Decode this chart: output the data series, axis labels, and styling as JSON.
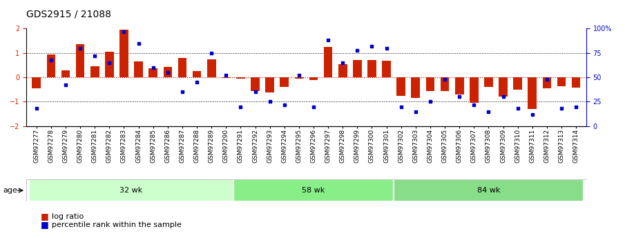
{
  "title": "GDS2915 / 21088",
  "samples": [
    "GSM97277",
    "GSM97278",
    "GSM97279",
    "GSM97280",
    "GSM97281",
    "GSM97282",
    "GSM97283",
    "GSM97284",
    "GSM97285",
    "GSM97286",
    "GSM97287",
    "GSM97288",
    "GSM97289",
    "GSM97290",
    "GSM97291",
    "GSM97292",
    "GSM97293",
    "GSM97294",
    "GSM97295",
    "GSM97296",
    "GSM97297",
    "GSM97298",
    "GSM97299",
    "GSM97300",
    "GSM97301",
    "GSM97302",
    "GSM97303",
    "GSM97304",
    "GSM97305",
    "GSM97306",
    "GSM97307",
    "GSM97308",
    "GSM97309",
    "GSM97310",
    "GSM97311",
    "GSM97312",
    "GSM97313",
    "GSM97314"
  ],
  "log_ratio": [
    -0.45,
    0.93,
    0.3,
    1.35,
    0.45,
    1.05,
    1.95,
    0.65,
    0.38,
    0.42,
    0.8,
    0.27,
    0.75,
    -0.03,
    -0.05,
    -0.55,
    -0.62,
    -0.38,
    -0.05,
    -0.1,
    1.25,
    0.55,
    0.7,
    0.72,
    0.68,
    -0.75,
    -0.85,
    -0.55,
    -0.55,
    -0.7,
    -1.05,
    -0.38,
    -0.8,
    -0.5,
    -1.3,
    -0.45,
    -0.35,
    -0.42
  ],
  "percentile": [
    18,
    68,
    42,
    80,
    72,
    65,
    97,
    85,
    60,
    55,
    35,
    45,
    75,
    52,
    20,
    35,
    25,
    22,
    52,
    20,
    88,
    65,
    78,
    82,
    80,
    20,
    15,
    25,
    48,
    30,
    22,
    15,
    30,
    18,
    12,
    48,
    18,
    20
  ],
  "groups": [
    {
      "label": "32 wk",
      "start": 0,
      "end": 14,
      "color": "#ccffcc"
    },
    {
      "label": "58 wk",
      "start": 14,
      "end": 25,
      "color": "#88ee88"
    },
    {
      "label": "84 wk",
      "start": 25,
      "end": 38,
      "color": "#88dd88"
    }
  ],
  "ylim": [
    -2,
    2
  ],
  "bar_color": "#cc2200",
  "dot_color": "#0000cc",
  "zero_line_color": "#cc0000",
  "hline_color": "#000000",
  "title_fontsize": 10,
  "tick_fontsize": 6.5,
  "age_label": "age",
  "legend_log_ratio": "log ratio",
  "legend_percentile": "percentile rank within the sample"
}
